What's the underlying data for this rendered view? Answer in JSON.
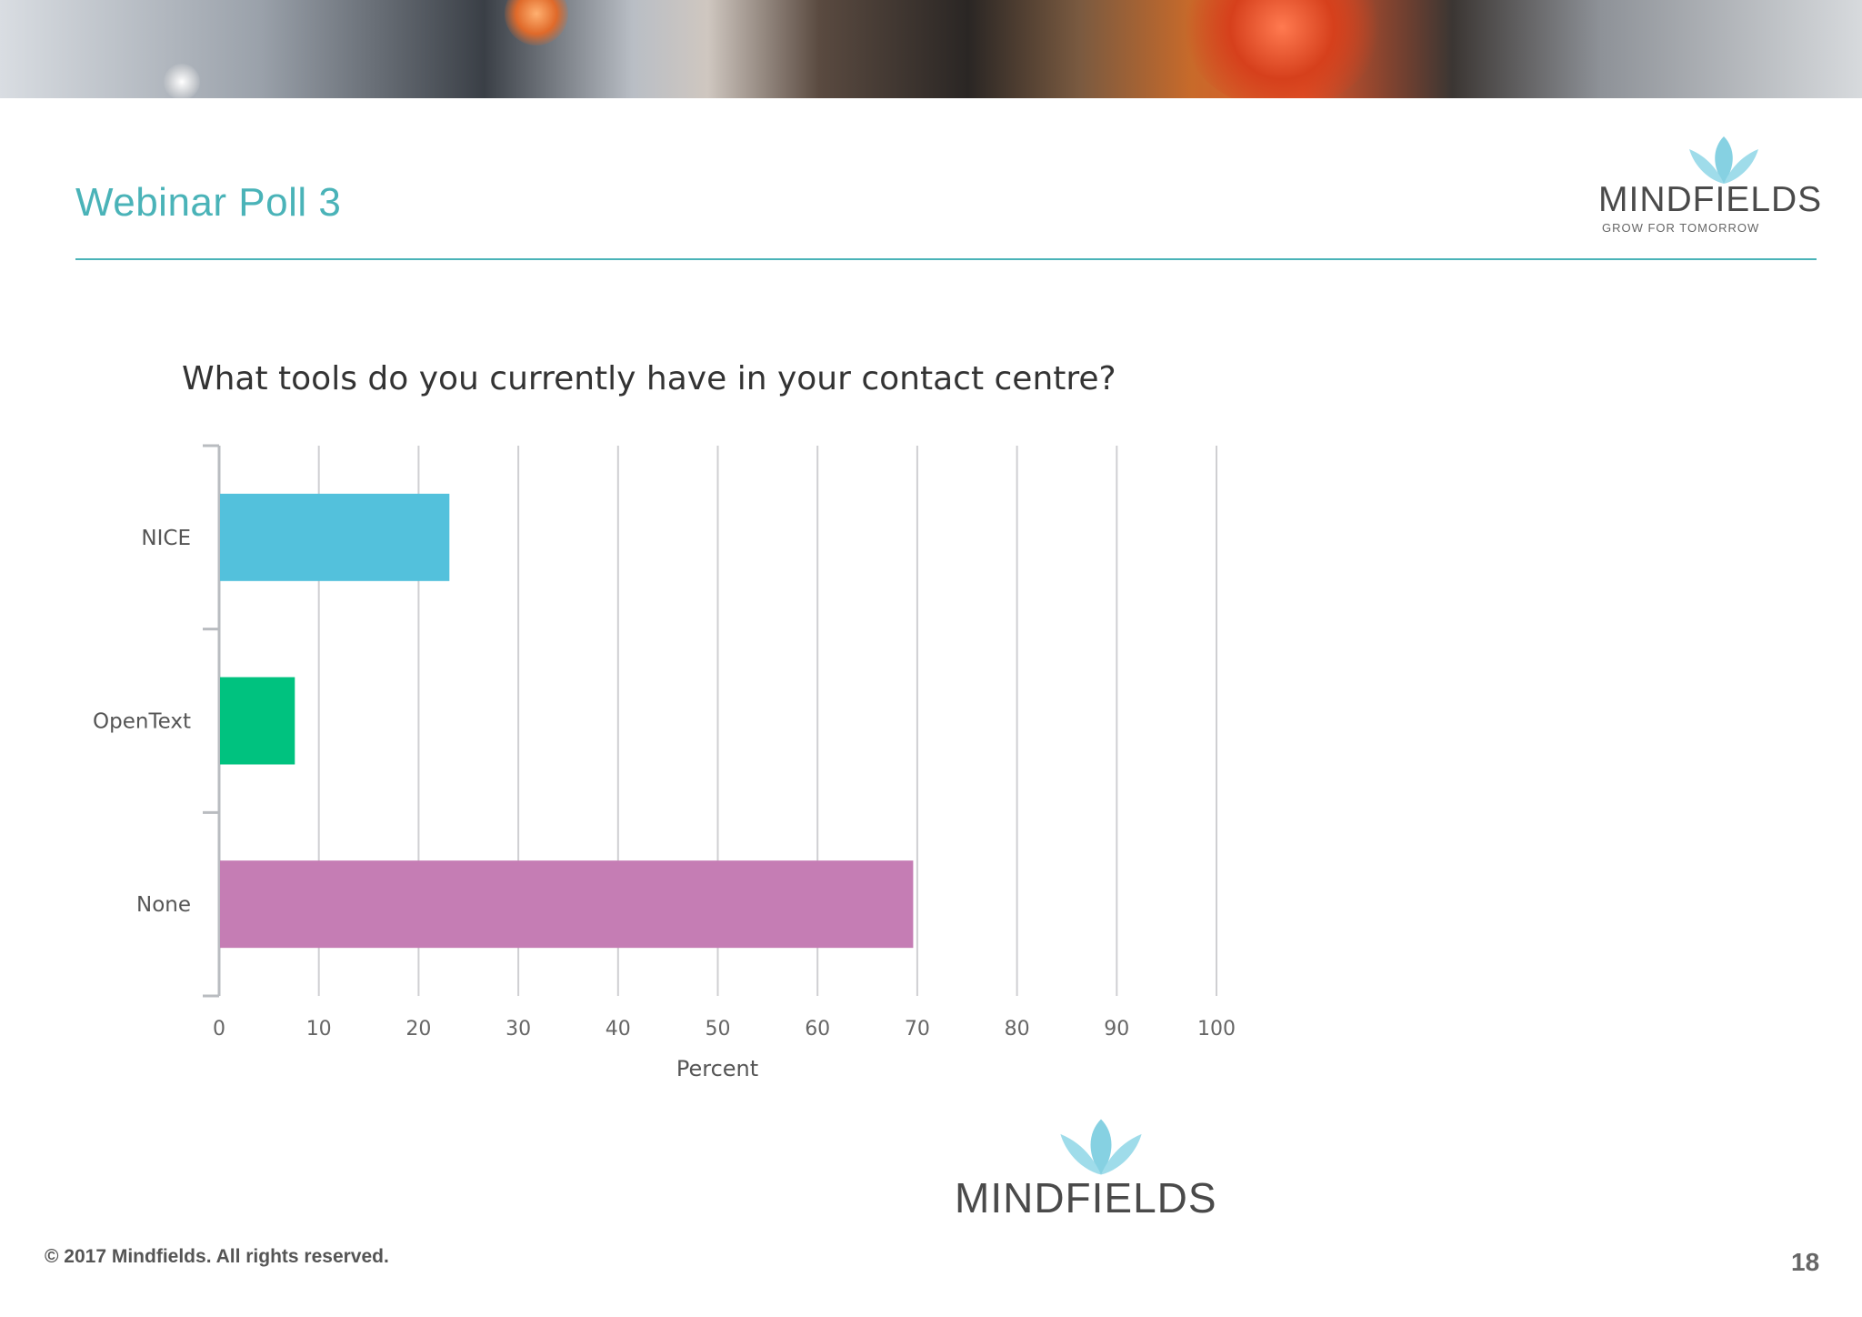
{
  "slide": {
    "title": "Webinar Poll 3",
    "page_number": "18",
    "copyright": "© 2017  Mindfields. All rights reserved.",
    "accent_color": "#4ab3b8"
  },
  "logo": {
    "wordmark": "MINDFIELDS",
    "tagline": "GROW FOR TOMORROW",
    "icon": "lotus-icon",
    "icon_color": "#7fcfe0"
  },
  "chart_data": {
    "type": "bar",
    "orientation": "horizontal",
    "title": "What tools do you currently have in your contact centre?",
    "categories": [
      "NICE",
      "OpenText",
      "None"
    ],
    "values": [
      23,
      7.5,
      69.5
    ],
    "colors": [
      "#53c1dc",
      "#00c27f",
      "#c57db4"
    ],
    "xlabel": "Percent",
    "ylabel": "",
    "xlim": [
      0,
      100
    ],
    "xticks": [
      "0",
      "10",
      "20",
      "30",
      "40",
      "50",
      "60",
      "70",
      "80",
      "90",
      "100"
    ],
    "grid": true,
    "legend": "none"
  }
}
